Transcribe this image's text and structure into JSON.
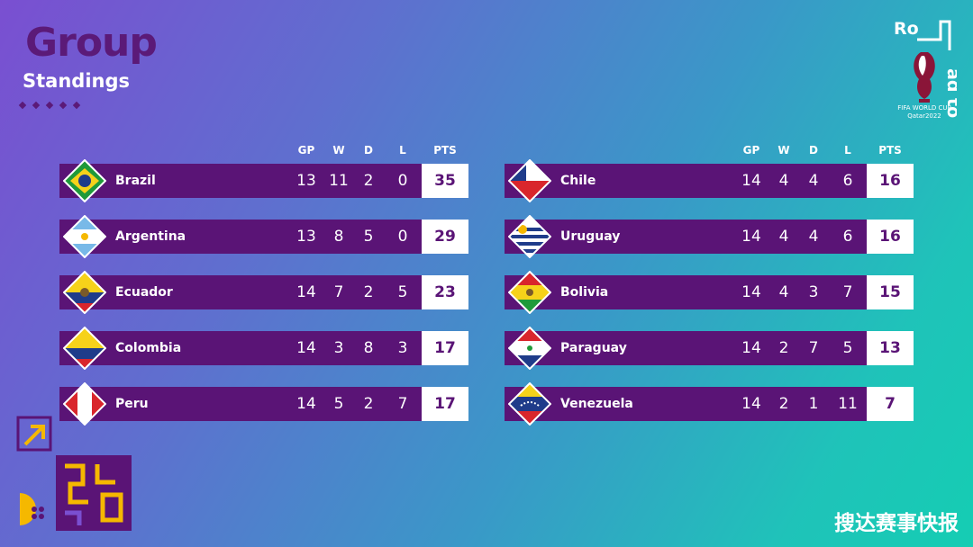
{
  "header": {
    "title": "Group",
    "subtitle": "Standings"
  },
  "columns": [
    "GP",
    "W",
    "D",
    "L",
    "PTS"
  ],
  "left_table": [
    {
      "team": "Brazil",
      "flag": "brazil-flag-icon",
      "gp": "13",
      "w": "11",
      "d": "2",
      "l": "0",
      "pts": "35"
    },
    {
      "team": "Argentina",
      "flag": "argentina-flag-icon",
      "gp": "13",
      "w": "8",
      "d": "5",
      "l": "0",
      "pts": "29"
    },
    {
      "team": "Ecuador",
      "flag": "ecuador-flag-icon",
      "gp": "14",
      "w": "7",
      "d": "2",
      "l": "5",
      "pts": "23"
    },
    {
      "team": "Colombia",
      "flag": "colombia-flag-icon",
      "gp": "14",
      "w": "3",
      "d": "8",
      "l": "3",
      "pts": "17"
    },
    {
      "team": "Peru",
      "flag": "peru-flag-icon",
      "gp": "14",
      "w": "5",
      "d": "2",
      "l": "7",
      "pts": "17"
    }
  ],
  "right_table": [
    {
      "team": "Chile",
      "flag": "chile-flag-icon",
      "gp": "14",
      "w": "4",
      "d": "4",
      "l": "6",
      "pts": "16"
    },
    {
      "team": "Uruguay",
      "flag": "uruguay-flag-icon",
      "gp": "14",
      "w": "4",
      "d": "4",
      "l": "6",
      "pts": "16"
    },
    {
      "team": "Bolivia",
      "flag": "bolivia-flag-icon",
      "gp": "14",
      "w": "4",
      "d": "3",
      "l": "7",
      "pts": "15"
    },
    {
      "team": "Paraguay",
      "flag": "paraguay-flag-icon",
      "gp": "14",
      "w": "2",
      "d": "7",
      "l": "5",
      "pts": "13"
    },
    {
      "team": "Venezuela",
      "flag": "venezuela-flag-icon",
      "gp": "14",
      "w": "2",
      "d": "1",
      "l": "11",
      "pts": "7"
    }
  ],
  "logo": {
    "text_ro": "Ro",
    "text_ad": "ad to",
    "line1": "FIFA WORLD CUP",
    "line2": "Qatar2022"
  },
  "watermark": "搜达赛事快报",
  "colors": {
    "row_bg": "#5a1476",
    "title": "#5b1a78",
    "accent_yellow": "#f5b800"
  }
}
